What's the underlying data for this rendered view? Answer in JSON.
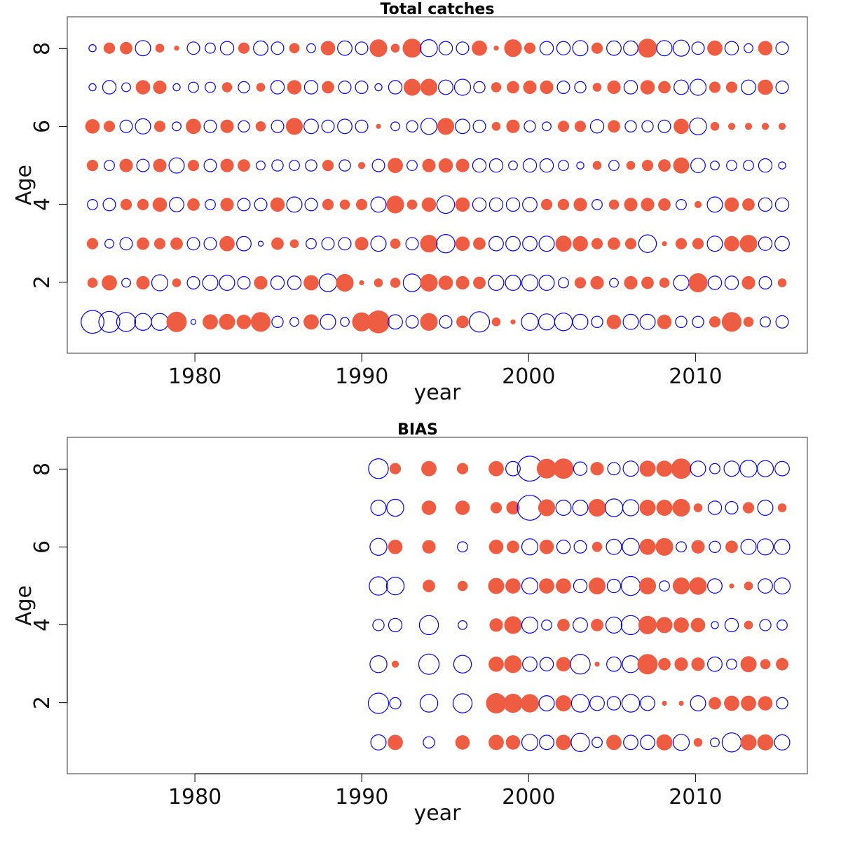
{
  "chart_data": [
    {
      "type": "scatter",
      "subtype": "bubble-residuals",
      "title": "Total catches",
      "xlabel": "year",
      "ylabel": "Age",
      "xlim": [
        1972.5,
        2016.5
      ],
      "ylim": [
        0.2,
        8.8
      ],
      "xticks": [
        "1980",
        "1990",
        "2000",
        "2010"
      ],
      "yticks": [
        "2",
        "4",
        "6",
        "8"
      ],
      "grid": false,
      "legend": "none",
      "sign_colors": {
        "positive": "#ee5c42",
        "negative": "#0000ff"
      },
      "years": [
        1974,
        1975,
        1976,
        1977,
        1978,
        1979,
        1980,
        1981,
        1982,
        1983,
        1984,
        1985,
        1986,
        1987,
        1988,
        1989,
        1990,
        1991,
        1992,
        1993,
        1994,
        1995,
        1996,
        1997,
        1998,
        1999,
        2000,
        2001,
        2002,
        2003,
        2004,
        2005,
        2006,
        2007,
        2008,
        2009,
        2010,
        2011,
        2012,
        2013,
        2014,
        2015
      ],
      "ages": [
        1,
        2,
        3,
        4,
        5,
        6,
        7,
        8
      ],
      "residuals": [
        [
          -2.0,
          -1.7,
          -1.4,
          -1.1,
          -1.1,
          1.6,
          -0.1,
          0.9,
          1.0,
          0.8,
          1.5,
          -0.5,
          -0.3,
          0.9,
          -0.9,
          -0.3,
          1.4,
          2.0,
          -0.8,
          -0.6,
          1.2,
          -0.6,
          0.6,
          -1.6,
          0.3,
          0.1,
          -1.1,
          -1.0,
          -1.2,
          -0.9,
          -0.5,
          0.8,
          -0.9,
          -0.9,
          0.8,
          -0.5,
          -0.5,
          0.5,
          1.5,
          0.4,
          -0.4,
          -0.6
        ],
        [
          0.4,
          0.9,
          -0.3,
          0.7,
          -1.0,
          0.3,
          -0.6,
          -0.9,
          -0.9,
          -0.6,
          0.7,
          -0.7,
          -0.7,
          0.9,
          -1.2,
          1.2,
          0.1,
          0.3,
          0.4,
          -1.2,
          1.2,
          0.8,
          0.7,
          0.6,
          -0.9,
          -0.9,
          -1.0,
          -0.9,
          -0.4,
          0.5,
          0.7,
          -0.3,
          0.7,
          0.6,
          0.4,
          -0.9,
          1.4,
          -0.7,
          -0.7,
          0.7,
          -0.6,
          0.3
        ],
        [
          0.5,
          -0.3,
          -0.6,
          0.6,
          0.5,
          0.6,
          -0.6,
          -0.6,
          0.9,
          -0.8,
          -0.1,
          0.6,
          0.3,
          -0.4,
          -0.6,
          -0.6,
          0.7,
          -0.9,
          0.4,
          -0.6,
          1.2,
          -1.3,
          0.8,
          0.6,
          -0.8,
          -0.8,
          -0.8,
          -0.9,
          1.0,
          0.9,
          0.5,
          0.6,
          0.5,
          -1.2,
          0.1,
          0.5,
          0.5,
          -0.9,
          0.9,
          1.2,
          -0.7,
          -0.8
        ],
        [
          -0.4,
          -0.6,
          0.5,
          0.5,
          0.8,
          -0.8,
          0.6,
          -0.4,
          0.7,
          -0.6,
          -0.6,
          0.8,
          -0.9,
          -0.6,
          0.5,
          0.4,
          0.5,
          -0.9,
          1.2,
          0.4,
          0.8,
          -1.2,
          0.8,
          -0.7,
          -0.7,
          -0.7,
          -0.8,
          0.5,
          0.5,
          0.7,
          -0.4,
          0.4,
          0.7,
          0.7,
          0.6,
          -0.4,
          0.2,
          -0.9,
          0.8,
          0.6,
          -0.7,
          -0.7
        ],
        [
          0.5,
          -0.4,
          0.7,
          -0.6,
          0.7,
          -0.9,
          0.5,
          -0.6,
          0.7,
          0.6,
          -0.3,
          -0.5,
          -0.4,
          -0.5,
          0.5,
          -0.5,
          0.2,
          -0.6,
          0.9,
          -0.4,
          0.7,
          0.8,
          0.7,
          -0.7,
          -0.7,
          -0.3,
          -0.7,
          -0.7,
          -0.4,
          -0.2,
          0.3,
          -0.4,
          0.3,
          0.5,
          0.6,
          1.0,
          -0.8,
          -0.3,
          -0.4,
          -0.4,
          -0.7,
          -0.2
        ],
        [
          0.8,
          0.5,
          -0.6,
          -0.9,
          0.5,
          -0.3,
          0.9,
          -0.6,
          0.7,
          -0.5,
          0.4,
          -0.6,
          1.1,
          -0.8,
          -0.6,
          -0.8,
          -0.6,
          0.1,
          -0.3,
          -0.5,
          -1.0,
          1.1,
          -0.8,
          -0.6,
          0.3,
          0.7,
          -0.5,
          -0.3,
          0.5,
          0.5,
          -0.7,
          0.6,
          -0.5,
          -0.5,
          -0.6,
          0.9,
          -1.1,
          0.3,
          0.2,
          0.2,
          0.2,
          0.2
        ],
        [
          -0.2,
          -0.7,
          -0.3,
          0.8,
          0.7,
          -0.2,
          -0.4,
          -0.4,
          0.4,
          -0.5,
          0.3,
          -0.7,
          0.8,
          -0.7,
          0.6,
          -0.6,
          -0.6,
          -0.2,
          -0.7,
          1.1,
          1.1,
          -0.8,
          -1.0,
          -0.5,
          0.4,
          0.6,
          0.7,
          0.7,
          -0.6,
          -0.5,
          0.3,
          0.7,
          -0.7,
          0.8,
          0.6,
          -0.8,
          -1.0,
          0.5,
          0.5,
          -0.8,
          0.9,
          -0.6
        ],
        [
          -0.2,
          0.5,
          0.6,
          -0.9,
          0.3,
          0.1,
          -0.6,
          -0.4,
          -0.7,
          0.5,
          -0.8,
          -0.6,
          0.4,
          -0.3,
          0.8,
          -0.8,
          -0.6,
          1.2,
          0.3,
          1.4,
          -1.1,
          -0.7,
          -0.6,
          0.9,
          0.1,
          1.2,
          0.5,
          -0.7,
          -0.7,
          -0.9,
          0.5,
          -0.8,
          -0.8,
          1.4,
          -0.9,
          -1.0,
          -0.6,
          0.9,
          -0.7,
          -0.3,
          0.8,
          -0.6
        ]
      ]
    },
    {
      "type": "scatter",
      "subtype": "bubble-residuals",
      "title": "BIAS",
      "xlabel": "year",
      "ylabel": "Age",
      "xlim": [
        1972.5,
        2016.5
      ],
      "ylim": [
        0.2,
        8.8
      ],
      "xticks": [
        "1980",
        "1990",
        "2000",
        "2010"
      ],
      "yticks": [
        "2",
        "4",
        "6",
        "8"
      ],
      "grid": false,
      "legend": "none",
      "sign_colors": {
        "positive": "#ee5c42",
        "negative": "#0000ff"
      },
      "years": [
        1991,
        1992,
        1994,
        1996,
        1998,
        1999,
        2000,
        2001,
        2002,
        2003,
        2004,
        2005,
        2006,
        2007,
        2008,
        2009,
        2010,
        2011,
        2012,
        2013,
        2014,
        2015
      ],
      "ages": [
        1,
        2,
        3,
        4,
        5,
        6,
        7,
        8
      ],
      "residuals": [
        [
          -0.9,
          0.9,
          -0.5,
          0.8,
          0.9,
          0.8,
          -1.0,
          -0.8,
          0.9,
          -1.3,
          -0.4,
          0.9,
          -0.8,
          -0.8,
          1.0,
          -1.0,
          0.3,
          -0.3,
          -1.4,
          1.0,
          1.0,
          -0.9
        ],
        [
          -1.6,
          -0.5,
          -1.2,
          -1.4,
          1.6,
          1.4,
          1.3,
          -0.9,
          1.0,
          -1.2,
          -0.8,
          -0.7,
          -1.2,
          -0.8,
          0.1,
          0.1,
          -0.9,
          0.6,
          0.9,
          0.9,
          0.8,
          -0.5
        ],
        [
          -1.1,
          0.2,
          -1.6,
          -1.2,
          0.9,
          1.2,
          -0.8,
          -0.7,
          0.8,
          -1.5,
          0.1,
          -0.8,
          -1.1,
          1.6,
          0.6,
          0.7,
          0.7,
          -0.8,
          -0.4,
          1.0,
          0.4,
          0.6
        ],
        [
          -0.5,
          -0.7,
          -1.4,
          -0.3,
          0.7,
          1.2,
          -1.0,
          -0.4,
          0.6,
          -0.8,
          0.6,
          -1.0,
          -1.4,
          1.3,
          1.0,
          0.9,
          0.8,
          -0.2,
          -0.7,
          0.3,
          -0.5,
          -0.4
        ],
        [
          -1.3,
          -1.2,
          0.6,
          0.4,
          1.0,
          0.9,
          -1.0,
          0.9,
          0.9,
          -0.7,
          1.1,
          -0.7,
          -1.4,
          1.1,
          -0.4,
          1.1,
          1.2,
          -0.8,
          0.1,
          0.3,
          -0.8,
          -1.0
        ],
        [
          -1.1,
          0.8,
          0.7,
          -0.4,
          0.8,
          0.6,
          -1.0,
          0.8,
          -0.7,
          -0.6,
          0.4,
          -0.9,
          -1.1,
          1.0,
          1.2,
          -0.4,
          0.7,
          -0.5,
          0.6,
          -0.9,
          -1.0,
          -0.9
        ],
        [
          -0.9,
          -1.1,
          0.8,
          0.8,
          0.5,
          0.7,
          -2.4,
          1.1,
          -0.9,
          -0.9,
          1.2,
          -1.2,
          -1.0,
          1.0,
          1.0,
          1.2,
          0.3,
          -0.7,
          -0.6,
          0.5,
          -0.9,
          0.3
        ],
        [
          -1.5,
          0.5,
          0.9,
          0.5,
          0.9,
          -0.8,
          -2.4,
          1.5,
          1.6,
          -0.7,
          0.7,
          -0.6,
          -0.9,
          1.0,
          1.0,
          1.6,
          -0.9,
          -0.4,
          -0.9,
          -1.1,
          -1.0,
          -0.8
        ]
      ]
    }
  ]
}
